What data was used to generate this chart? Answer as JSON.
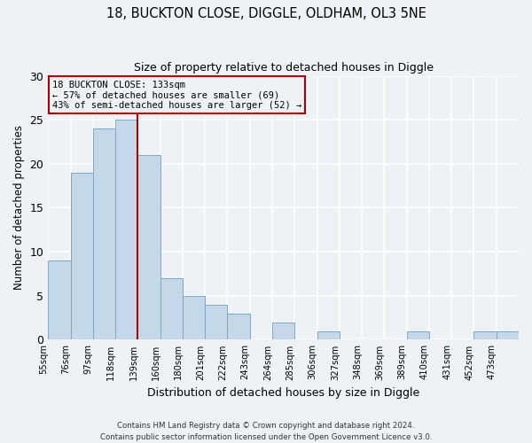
{
  "title1": "18, BUCKTON CLOSE, DIGGLE, OLDHAM, OL3 5NE",
  "title2": "Size of property relative to detached houses in Diggle",
  "xlabel": "Distribution of detached houses by size in Diggle",
  "ylabel": "Number of detached properties",
  "bin_labels": [
    "55sqm",
    "76sqm",
    "97sqm",
    "118sqm",
    "139sqm",
    "160sqm",
    "180sqm",
    "201sqm",
    "222sqm",
    "243sqm",
    "264sqm",
    "285sqm",
    "306sqm",
    "327sqm",
    "348sqm",
    "369sqm",
    "389sqm",
    "410sqm",
    "431sqm",
    "452sqm",
    "473sqm"
  ],
  "bar_heights": [
    9,
    19,
    24,
    25,
    21,
    7,
    5,
    4,
    3,
    0,
    2,
    0,
    1,
    0,
    0,
    0,
    1,
    0,
    0,
    1,
    1
  ],
  "bar_color": "#c5d8ea",
  "bar_edge_color": "#7aaac8",
  "vline_at_bin": 4,
  "ylim": [
    0,
    30
  ],
  "yticks": [
    0,
    5,
    10,
    15,
    20,
    25,
    30
  ],
  "annotation_line1": "18 BUCKTON CLOSE: 133sqm",
  "annotation_line2": "← 57% of detached houses are smaller (69)",
  "annotation_line3": "43% of semi-detached houses are larger (52) →",
  "annotation_box_color": "#aa0000",
  "vline_color": "#aa0000",
  "footer1": "Contains HM Land Registry data © Crown copyright and database right 2024.",
  "footer2": "Contains public sector information licensed under the Open Government Licence v3.0.",
  "background_color": "#eef2f7",
  "grid_color": "#ffffff"
}
